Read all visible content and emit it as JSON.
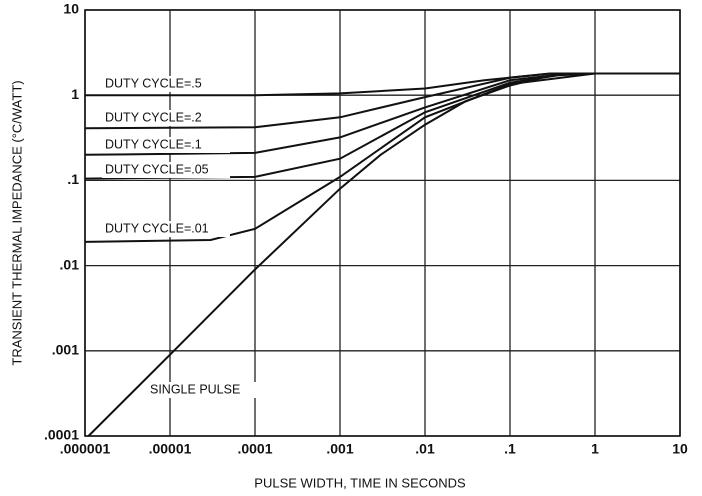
{
  "chart_data": {
    "type": "line",
    "xlabel": "PULSE WIDTH, TIME IN SECONDS",
    "ylabel": "TRANSIENT THERMAL IMPEDANCE (°C/WATT)",
    "xscale": "log",
    "yscale": "log",
    "grid": true,
    "xlim": [
      1e-06,
      10
    ],
    "ylim": [
      0.0001,
      10
    ],
    "xticks": [
      {
        "value": 1e-06,
        "label": ".000001"
      },
      {
        "value": 1e-05,
        "label": ".00001"
      },
      {
        "value": 0.0001,
        "label": ".0001"
      },
      {
        "value": 0.001,
        "label": ".001"
      },
      {
        "value": 0.01,
        "label": ".01"
      },
      {
        "value": 0.1,
        "label": ".1"
      },
      1,
      10
    ],
    "yticks": [
      {
        "value": 0.0001,
        "label": ".0001"
      },
      {
        "value": 0.001,
        "label": ".001"
      },
      {
        "value": 0.01,
        "label": ".01"
      },
      {
        "value": 0.1,
        "label": ".1"
      },
      1,
      10
    ],
    "series": [
      {
        "name": "DUTY CYCLE=.5",
        "color": "#111111",
        "x": [
          1e-06,
          0.0001,
          0.001,
          0.01,
          0.05,
          0.3,
          10
        ],
        "values": [
          1.0,
          1.0,
          1.05,
          1.2,
          1.5,
          1.8,
          1.8
        ]
      },
      {
        "name": "DUTY CYCLE=.2",
        "color": "#111111",
        "x": [
          1e-06,
          0.0001,
          0.001,
          0.01,
          0.1,
          0.3,
          10
        ],
        "values": [
          0.41,
          0.42,
          0.55,
          0.95,
          1.6,
          1.8,
          1.8
        ]
      },
      {
        "name": "DUTY CYCLE=.1",
        "color": "#111111",
        "x": [
          1e-06,
          0.0001,
          0.001,
          0.01,
          0.1,
          0.5,
          10
        ],
        "values": [
          0.2,
          0.21,
          0.32,
          0.72,
          1.5,
          1.8,
          1.8
        ]
      },
      {
        "name": "DUTY CYCLE=.05",
        "color": "#111111",
        "x": [
          1e-06,
          0.0001,
          0.001,
          0.01,
          0.1,
          0.5,
          10
        ],
        "values": [
          0.105,
          0.11,
          0.18,
          0.63,
          1.4,
          1.8,
          1.8
        ]
      },
      {
        "name": "DUTY CYCLE=.01",
        "color": "#111111",
        "x": [
          1e-06,
          3e-05,
          0.0001,
          0.001,
          0.01,
          0.1,
          1,
          10
        ],
        "values": [
          0.019,
          0.02,
          0.027,
          0.11,
          0.55,
          1.35,
          1.8,
          1.8
        ]
      },
      {
        "name": "SINGLE PULSE",
        "color": "#111111",
        "x": [
          1.1e-06,
          1e-05,
          0.0001,
          0.001,
          0.003,
          0.01,
          0.03,
          0.1,
          0.3,
          1,
          10
        ],
        "values": [
          0.0001,
          0.0009,
          0.009,
          0.08,
          0.2,
          0.45,
          0.85,
          1.3,
          1.7,
          1.8,
          1.8
        ]
      }
    ]
  }
}
